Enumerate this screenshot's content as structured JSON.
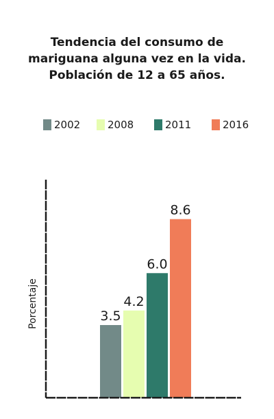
{
  "chart_data": {
    "type": "bar",
    "title_lines": [
      "Tendencia del consumo de",
      "mariguana alguna vez en la vida.",
      "Población de 12 a 65 años."
    ],
    "xlabel": "",
    "ylabel": "Porcentaje",
    "categories": [
      "2002",
      "2008",
      "2011",
      "2016"
    ],
    "values": [
      3.5,
      4.2,
      6.0,
      8.6
    ],
    "data_labels": [
      "3.5",
      "4.2",
      "6.0",
      "8.6"
    ],
    "colors": [
      "#728a88",
      "#e6fdb0",
      "#2e7a6a",
      "#f07c58"
    ],
    "ylim": [
      0,
      10.5
    ],
    "grid": false,
    "legend_position": "top",
    "axis_color": "#1a1a1a"
  }
}
